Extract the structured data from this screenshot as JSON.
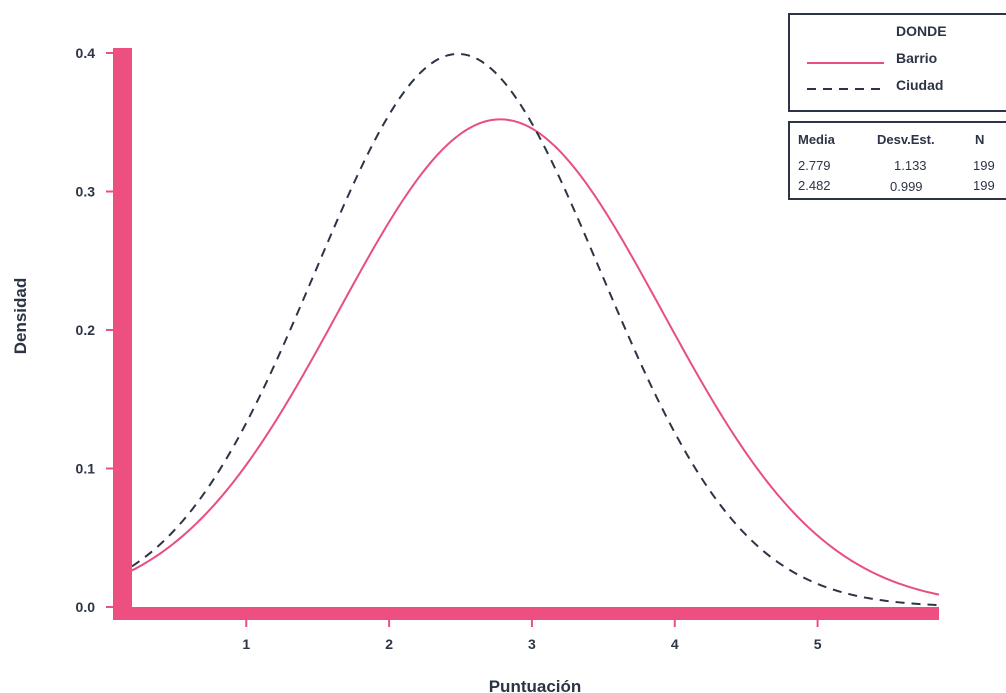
{
  "chart_data": {
    "type": "line",
    "xlabel": "Puntuación",
    "ylabel": "Densidad",
    "xlim": [
      0.2,
      5.85
    ],
    "ylim": [
      0,
      0.4
    ],
    "x_ticks": [
      "1",
      "2",
      "3",
      "4",
      "5"
    ],
    "y_ticks": [
      "0.0",
      "0.1",
      "0.2",
      "0.3",
      "0.4"
    ],
    "grid": false,
    "legend": {
      "title": "DONDE",
      "placement": "top-right",
      "entries": [
        "Barrio",
        "Ciudad"
      ]
    },
    "series": [
      {
        "name": "Barrio",
        "style": "solid",
        "color": "#e84e7f",
        "mean": 2.779,
        "sd": 1.133,
        "n": 199
      },
      {
        "name": "Ciudad",
        "style": "dashed",
        "color": "#2c3445",
        "mean": 2.482,
        "sd": 0.999,
        "n": 199
      }
    ],
    "stats_table": {
      "headers": [
        "Media",
        "Desv.Est.",
        "N"
      ],
      "rows": [
        [
          "2.779",
          "1.133",
          "199"
        ],
        [
          "2.482",
          "0.999",
          "199"
        ]
      ]
    }
  },
  "colors": {
    "axis": "#ec4f80",
    "barrio": "#e84e7f",
    "ciudad": "#2c3445",
    "text": "#2c3445"
  }
}
